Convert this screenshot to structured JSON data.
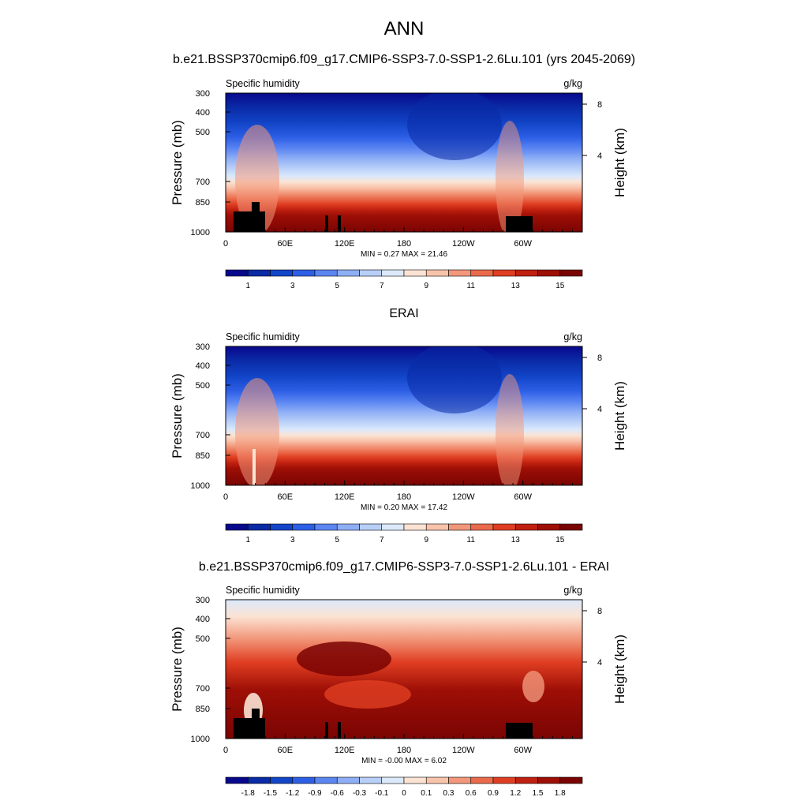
{
  "figure": {
    "title": "ANN"
  },
  "chart_data": [
    {
      "type": "heatmap",
      "title": "b.e21.BSSP370cmip6.f09_g17.CMIP6-SSP3-7.0-SSP1-2.6Lu.101 (yrs 2045-2069)",
      "subtitle_left": "Specific humidity",
      "units": "g/kg",
      "ylabel": "Pressure (mb)",
      "y2label": "Height (km)",
      "x_ticks": [
        "0",
        "60E",
        "120E",
        "180",
        "120W",
        "60W"
      ],
      "y_ticks": [
        "300",
        "400",
        "500",
        "700",
        "850",
        "1000"
      ],
      "y2_ticks": [
        "8",
        "4"
      ],
      "stats": "MIN =   0.27  MAX =  21.46",
      "colorbar": {
        "labels": [
          "1",
          "3",
          "5",
          "7",
          "9",
          "11",
          "13",
          "15"
        ],
        "levels": [
          1,
          2,
          3,
          4,
          5,
          6,
          7,
          8,
          9,
          10,
          11,
          12,
          13,
          14,
          15
        ],
        "colors": [
          "#08088c",
          "#0a2aa6",
          "#1245c8",
          "#2d5fe6",
          "#5b86f2",
          "#8eaef6",
          "#b8cff8",
          "#dce9fb",
          "#fbe3d4",
          "#f8c3ab",
          "#f2977a",
          "#ea6b4c",
          "#e03e22",
          "#c0200f",
          "#9e0f06",
          "#7a0403"
        ]
      },
      "xlim": [
        0,
        360
      ],
      "ylim": [
        1000,
        300
      ]
    },
    {
      "type": "heatmap",
      "title": "ERAI",
      "subtitle_left": "Specific humidity",
      "units": "g/kg",
      "ylabel": "Pressure (mb)",
      "y2label": "Height (km)",
      "x_ticks": [
        "0",
        "60E",
        "120E",
        "180",
        "120W",
        "60W"
      ],
      "y_ticks": [
        "300",
        "400",
        "500",
        "700",
        "850",
        "1000"
      ],
      "y2_ticks": [
        "8",
        "4"
      ],
      "stats": "MIN =   0.20  MAX =  17.42",
      "colorbar": {
        "labels": [
          "1",
          "3",
          "5",
          "7",
          "9",
          "11",
          "13",
          "15"
        ],
        "levels": [
          1,
          2,
          3,
          4,
          5,
          6,
          7,
          8,
          9,
          10,
          11,
          12,
          13,
          14,
          15
        ],
        "colors": [
          "#08088c",
          "#0a2aa6",
          "#1245c8",
          "#2d5fe6",
          "#5b86f2",
          "#8eaef6",
          "#b8cff8",
          "#dce9fb",
          "#fbe3d4",
          "#f8c3ab",
          "#f2977a",
          "#ea6b4c",
          "#e03e22",
          "#c0200f",
          "#9e0f06",
          "#7a0403"
        ]
      },
      "xlim": [
        0,
        360
      ],
      "ylim": [
        1000,
        300
      ]
    },
    {
      "type": "heatmap",
      "title": "b.e21.BSSP370cmip6.f09_g17.CMIP6-SSP3-7.0-SSP1-2.6Lu.101 - ERAI",
      "subtitle_left": "Specific humidity",
      "units": "g/kg",
      "ylabel": "Pressure (mb)",
      "y2label": "Height (km)",
      "x_ticks": [
        "0",
        "60E",
        "120E",
        "180",
        "120W",
        "60W"
      ],
      "y_ticks": [
        "300",
        "400",
        "500",
        "700",
        "850",
        "1000"
      ],
      "y2_ticks": [
        "8",
        "4"
      ],
      "stats": "MIN =  -0.00  MAX =   6.02",
      "colorbar": {
        "labels": [
          "-1.8",
          "-1.5",
          "-1.2",
          "-0.9",
          "-0.6",
          "-0.3",
          "-0.1",
          "0",
          "0.1",
          "0.3",
          "0.6",
          "0.9",
          "1.2",
          "1.5",
          "1.8"
        ],
        "levels": [
          -1.8,
          -1.5,
          -1.2,
          -0.9,
          -0.6,
          -0.3,
          -0.1,
          0,
          0.1,
          0.3,
          0.6,
          0.9,
          1.2,
          1.5,
          1.8
        ],
        "colors": [
          "#08088c",
          "#0a2aa6",
          "#1245c8",
          "#2d5fe6",
          "#5b86f2",
          "#8eaef6",
          "#b8cff8",
          "#dce9fb",
          "#fbe3d4",
          "#f8c3ab",
          "#f2977a",
          "#ea6b4c",
          "#e03e22",
          "#c0200f",
          "#9e0f06",
          "#7a0403"
        ]
      },
      "xlim": [
        0,
        360
      ],
      "ylim": [
        1000,
        300
      ]
    }
  ]
}
